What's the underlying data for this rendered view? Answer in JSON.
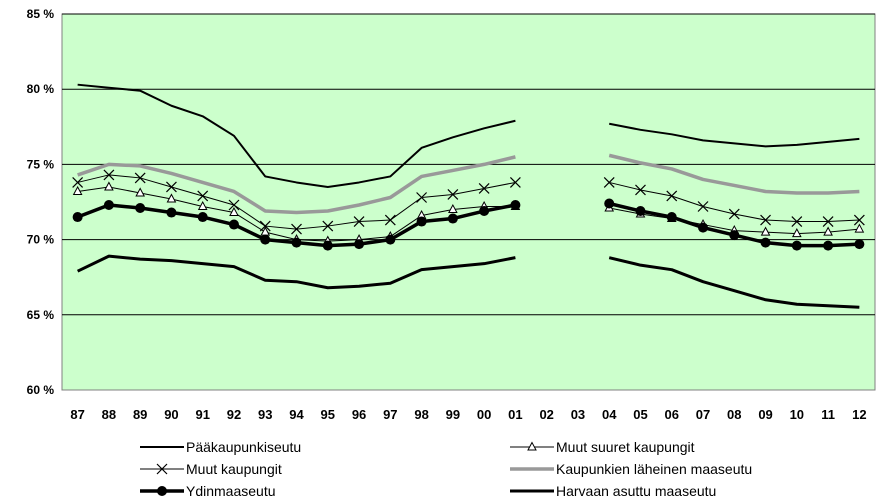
{
  "chart_data": {
    "type": "line",
    "ylim": [
      60,
      85
    ],
    "yticks": [
      "60 %",
      "65 %",
      "70 %",
      "75 %",
      "80 %",
      "85 %"
    ],
    "ytick_values": [
      60,
      65,
      70,
      75,
      80,
      85
    ],
    "categories": [
      "87",
      "88",
      "89",
      "90",
      "91",
      "92",
      "93",
      "94",
      "95",
      "96",
      "97",
      "98",
      "99",
      "00",
      "01",
      "02",
      "03",
      "04",
      "05",
      "06",
      "07",
      "08",
      "09",
      "10",
      "11",
      "12"
    ],
    "grid": "horizontal",
    "colors": {
      "plot_background": "#ccffcc",
      "grid": "#000000",
      "black": "#000000",
      "gray": "#999999"
    },
    "legend_position": "bottom",
    "series": [
      {
        "name": "Pääkaupunkiseutu",
        "style": "thin-line",
        "values": [
          80.3,
          80.1,
          79.9,
          78.9,
          78.2,
          76.9,
          74.2,
          73.8,
          73.5,
          73.8,
          74.2,
          76.1,
          76.8,
          77.4,
          77.9,
          null,
          null,
          77.7,
          77.3,
          77.0,
          76.6,
          76.4,
          76.2,
          76.3,
          76.5,
          76.7
        ]
      },
      {
        "name": "Muut suuret kaupungit",
        "style": "thin-line-triangle",
        "values": [
          73.2,
          73.5,
          73.1,
          72.7,
          72.2,
          71.8,
          70.5,
          70.0,
          69.9,
          70.0,
          70.2,
          71.6,
          72.0,
          72.2,
          72.2,
          null,
          null,
          72.1,
          71.7,
          71.4,
          71.0,
          70.6,
          70.5,
          70.4,
          70.5,
          70.7
        ]
      },
      {
        "name": "Muut kaupungit",
        "style": "thin-line-x",
        "values": [
          73.8,
          74.3,
          74.1,
          73.5,
          72.9,
          72.3,
          70.9,
          70.7,
          70.9,
          71.2,
          71.3,
          72.8,
          73.0,
          73.4,
          73.8,
          null,
          null,
          73.8,
          73.3,
          72.9,
          72.2,
          71.7,
          71.3,
          71.2,
          71.2,
          71.3
        ]
      },
      {
        "name": "Kaupunkien läheinen maaseutu",
        "style": "thick-gray",
        "values": [
          74.3,
          75.0,
          74.9,
          74.4,
          73.8,
          73.2,
          71.9,
          71.8,
          71.9,
          72.3,
          72.8,
          74.2,
          74.6,
          75.0,
          75.5,
          null,
          null,
          75.6,
          75.1,
          74.7,
          74.0,
          73.6,
          73.2,
          73.1,
          73.1,
          73.2
        ]
      },
      {
        "name": "Ydinmaaseutu",
        "style": "thick-dot",
        "values": [
          71.5,
          72.3,
          72.1,
          71.8,
          71.5,
          71.0,
          70.0,
          69.8,
          69.6,
          69.7,
          70.0,
          71.2,
          71.4,
          71.9,
          72.3,
          null,
          null,
          72.4,
          71.9,
          71.5,
          70.8,
          70.3,
          69.8,
          69.6,
          69.6,
          69.7
        ]
      },
      {
        "name": "Harvaan asuttu maaseutu",
        "style": "thick-line",
        "values": [
          67.9,
          68.9,
          68.7,
          68.6,
          68.4,
          68.2,
          67.3,
          67.2,
          66.8,
          66.9,
          67.1,
          68.0,
          68.2,
          68.4,
          68.8,
          null,
          null,
          68.8,
          68.3,
          68.0,
          67.2,
          66.6,
          66.0,
          65.7,
          65.6,
          65.5
        ]
      }
    ]
  }
}
